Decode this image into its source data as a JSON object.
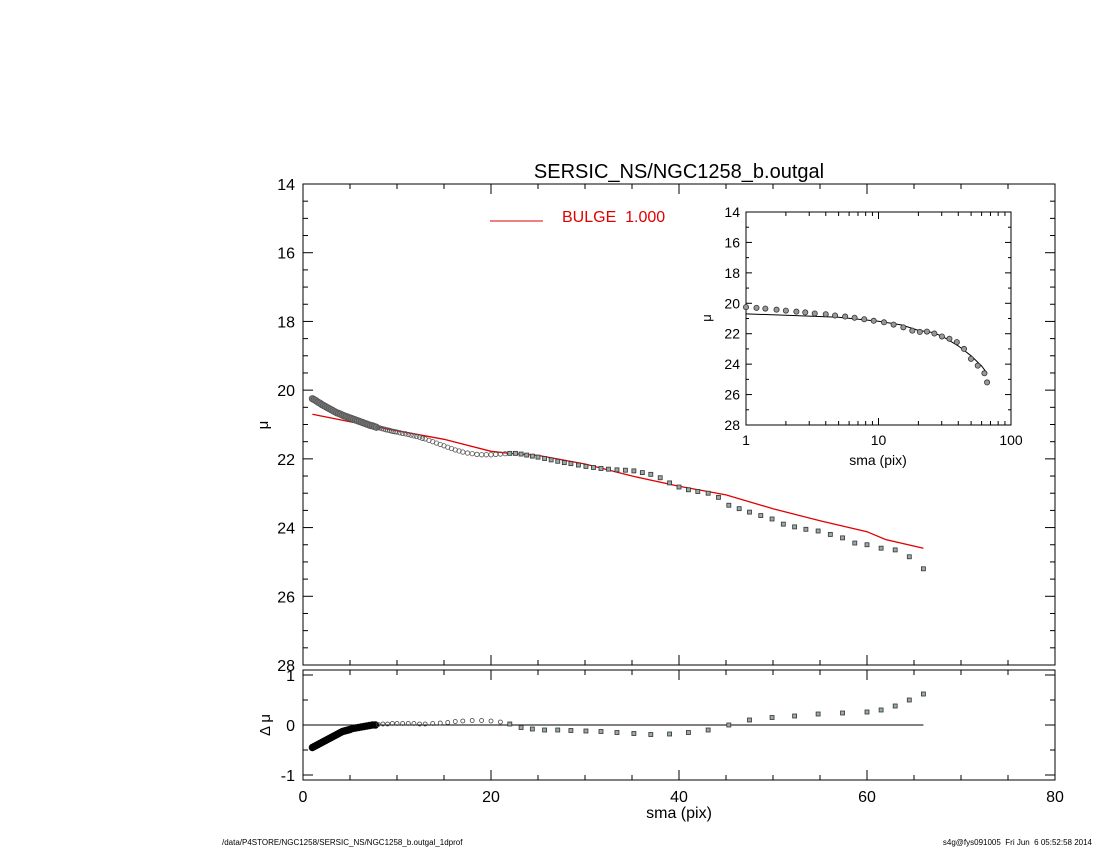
{
  "chart_data": [
    {
      "panel": "main",
      "type": "scatter",
      "title": "SERSIC_NS/NGC1258_b.outgal",
      "xlabel": "",
      "ylabel": "μ",
      "xlim": [
        0,
        80
      ],
      "ylim": [
        28,
        14
      ],
      "y_inverted": true,
      "yticks": [
        14,
        16,
        18,
        20,
        22,
        24,
        26,
        28
      ],
      "xticks": [
        0,
        20,
        40,
        60,
        80
      ],
      "grid": false,
      "legend": {
        "position": "top-center",
        "label": "BULGE  1.000",
        "color": "#e00000"
      },
      "series": [
        {
          "kind": "points",
          "color": "#666666",
          "x": [
            1.0,
            1.2,
            1.4,
            1.6,
            1.8,
            2.0,
            2.2,
            2.4,
            2.6,
            2.8,
            3.0,
            3.2,
            3.4,
            3.6,
            3.8,
            4.0,
            4.2,
            4.4,
            4.6,
            4.8,
            5.0,
            5.2,
            5.4,
            5.6,
            5.8,
            6.0,
            6.2,
            6.4,
            6.6,
            6.8,
            7.0,
            7.2,
            7.4,
            7.6,
            7.8,
            8.0,
            8.2,
            8.4,
            8.6,
            8.8,
            9.0,
            9.2,
            9.4,
            9.6,
            9.8,
            10.0,
            10.3,
            10.6,
            10.9,
            11.2,
            11.5,
            11.8,
            12.1,
            12.4,
            12.7,
            13.0,
            13.4,
            13.8,
            14.2,
            14.6,
            15.0,
            15.4,
            15.8,
            16.2,
            16.6,
            17.0,
            17.5,
            18.0,
            18.5,
            19.0,
            19.5,
            20.0,
            20.5,
            21.0,
            21.5,
            22.0,
            22.6,
            23.2,
            23.8,
            24.4,
            25.0,
            25.7,
            26.4,
            27.1,
            27.8,
            28.5,
            29.3,
            30.1,
            30.9,
            31.7,
            32.5,
            33.4,
            34.3,
            35.2,
            36.1,
            37.0,
            38.0,
            39.0,
            40.0,
            41.0,
            42.0,
            43.1,
            44.2,
            45.3,
            46.4,
            47.5,
            48.7,
            49.9,
            51.1,
            52.3,
            53.5,
            54.8,
            56.1,
            57.4,
            58.7,
            60.0,
            61.5,
            63.0,
            64.5,
            66.0
          ],
          "y": [
            20.25,
            20.28,
            20.31,
            20.35,
            20.38,
            20.42,
            20.45,
            20.48,
            20.51,
            20.54,
            20.57,
            20.6,
            20.63,
            20.66,
            20.68,
            20.7,
            20.73,
            20.75,
            20.77,
            20.79,
            20.81,
            20.83,
            20.85,
            20.87,
            20.89,
            20.91,
            20.93,
            20.95,
            20.97,
            20.99,
            21.01,
            21.03,
            21.04,
            21.06,
            21.08,
            21.09,
            21.1,
            21.12,
            21.13,
            21.15,
            21.16,
            21.17,
            21.19,
            21.2,
            21.21,
            21.22,
            21.24,
            21.26,
            21.27,
            21.29,
            21.31,
            21.33,
            21.35,
            21.37,
            21.4,
            21.42,
            21.46,
            21.5,
            21.54,
            21.58,
            21.62,
            21.66,
            21.7,
            21.74,
            21.77,
            21.8,
            21.83,
            21.85,
            21.87,
            21.88,
            21.88,
            21.88,
            21.87,
            21.86,
            21.85,
            21.84,
            21.84,
            21.86,
            21.89,
            21.92,
            21.95,
            21.99,
            22.03,
            22.07,
            22.11,
            22.14,
            22.18,
            22.22,
            22.25,
            22.28,
            22.3,
            22.32,
            22.33,
            22.35,
            22.4,
            22.45,
            22.55,
            22.7,
            22.82,
            22.9,
            22.95,
            23.0,
            23.12,
            23.35,
            23.45,
            23.55,
            23.65,
            23.75,
            23.9,
            23.98,
            24.05,
            24.1,
            24.2,
            24.3,
            24.45,
            24.5,
            24.6,
            24.65,
            24.85,
            25.2
          ]
        },
        {
          "kind": "line",
          "name": "BULGE  1.000",
          "color": "#e00000",
          "x": [
            1,
            5,
            10,
            15,
            20,
            22,
            25,
            30,
            35,
            40,
            45,
            50,
            55,
            60,
            62,
            66
          ],
          "y": [
            20.7,
            20.92,
            21.18,
            21.43,
            21.78,
            21.84,
            21.9,
            22.15,
            22.5,
            22.8,
            23.05,
            23.45,
            23.8,
            24.12,
            24.35,
            24.6
          ]
        }
      ]
    },
    {
      "panel": "inset",
      "type": "scatter",
      "xlabel": "sma (pix)",
      "ylabel": "μ",
      "xscale": "log",
      "xlim": [
        1,
        100
      ],
      "xticks": [
        1,
        10,
        100
      ],
      "ylim": [
        28,
        14
      ],
      "y_inverted": true,
      "yticks": [
        14,
        16,
        18,
        20,
        22,
        24,
        26,
        28
      ],
      "series": [
        {
          "kind": "points",
          "color": "#333333",
          "x": [
            1.0,
            1.2,
            1.4,
            1.7,
            2.0,
            2.4,
            2.8,
            3.3,
            4.0,
            4.7,
            5.6,
            6.6,
            7.8,
            9.2,
            11.0,
            13.0,
            15.4,
            18.0,
            20.5,
            23.2,
            26.4,
            30.1,
            34.3,
            39.0,
            44.2,
            49.9,
            56.1,
            63.0,
            66.0
          ],
          "y": [
            20.25,
            20.3,
            20.35,
            20.42,
            20.48,
            20.55,
            20.6,
            20.67,
            20.72,
            20.8,
            20.87,
            20.95,
            21.05,
            21.15,
            21.25,
            21.4,
            21.58,
            21.8,
            21.88,
            21.86,
            21.99,
            22.18,
            22.33,
            22.55,
            23.0,
            23.65,
            24.1,
            24.6,
            25.2
          ]
        },
        {
          "kind": "line",
          "color": "#000000",
          "x": [
            1,
            2,
            5,
            10,
            15,
            20,
            25,
            30,
            40,
            50,
            60,
            66
          ],
          "y": [
            20.7,
            20.78,
            20.92,
            21.18,
            21.43,
            21.78,
            21.9,
            22.15,
            22.8,
            23.45,
            24.12,
            24.6
          ]
        }
      ]
    },
    {
      "panel": "residual",
      "type": "scatter",
      "xlabel": "sma (pix)",
      "ylabel": "Δ μ",
      "xlim": [
        0,
        80
      ],
      "xticks": [
        0,
        20,
        40,
        60,
        80
      ],
      "ylim": [
        -1.1,
        1.1
      ],
      "yticks": [
        -1,
        0,
        1
      ],
      "zero_line": {
        "x": [
          1,
          66
        ],
        "y": 0
      },
      "series": [
        {
          "kind": "points",
          "color": "#555555",
          "x": [
            1.0,
            1.2,
            1.4,
            1.6,
            1.8,
            2.0,
            2.2,
            2.4,
            2.6,
            2.8,
            3.0,
            3.2,
            3.4,
            3.6,
            3.8,
            4.0,
            4.2,
            4.4,
            4.6,
            4.8,
            5.0,
            5.3,
            5.6,
            5.9,
            6.2,
            6.5,
            6.8,
            7.1,
            7.4,
            7.7,
            8.0,
            8.5,
            9.0,
            9.5,
            10.0,
            10.6,
            11.2,
            11.8,
            12.4,
            13.0,
            13.8,
            14.6,
            15.4,
            16.2,
            17.0,
            18.0,
            19.0,
            20.0,
            21.0,
            22.0,
            23.2,
            24.4,
            25.7,
            27.1,
            28.5,
            30.1,
            31.7,
            33.4,
            35.2,
            37.0,
            39.0,
            41.0,
            43.1,
            45.3,
            47.5,
            49.9,
            52.3,
            54.8,
            57.4,
            60.0,
            61.5,
            63.0,
            64.5,
            66.0
          ],
          "y": [
            -0.45,
            -0.43,
            -0.41,
            -0.39,
            -0.37,
            -0.35,
            -0.33,
            -0.31,
            -0.29,
            -0.27,
            -0.25,
            -0.23,
            -0.21,
            -0.19,
            -0.17,
            -0.15,
            -0.13,
            -0.12,
            -0.11,
            -0.1,
            -0.09,
            -0.07,
            -0.06,
            -0.05,
            -0.04,
            -0.03,
            -0.02,
            -0.01,
            0.0,
            0.0,
            0.01,
            0.02,
            0.02,
            0.03,
            0.03,
            0.03,
            0.03,
            0.03,
            0.02,
            0.02,
            0.03,
            0.04,
            0.05,
            0.07,
            0.08,
            0.09,
            0.09,
            0.08,
            0.06,
            0.02,
            -0.05,
            -0.08,
            -0.1,
            -0.1,
            -0.11,
            -0.12,
            -0.13,
            -0.15,
            -0.17,
            -0.19,
            -0.18,
            -0.15,
            -0.1,
            0.0,
            0.1,
            0.15,
            0.18,
            0.22,
            0.24,
            0.26,
            0.3,
            0.38,
            0.5,
            0.62
          ]
        }
      ]
    }
  ],
  "footer": {
    "left": "/data/P4STORE/NGC1258/SERSIC_NS/NGC1258_b.outgal_1dprof",
    "right": "s4g@fys091005  Fri Jun  6 05:52:58 2014"
  }
}
